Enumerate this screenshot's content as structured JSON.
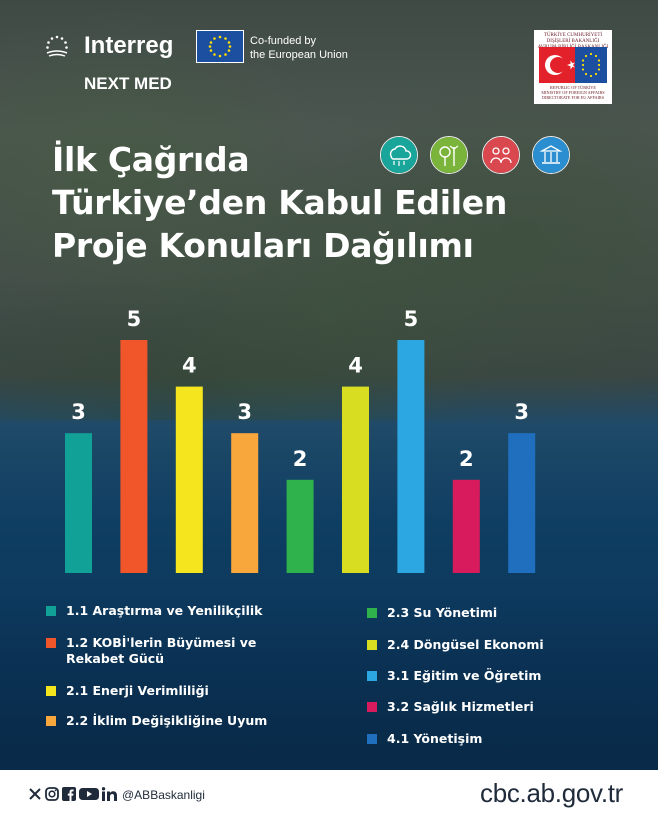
{
  "header": {
    "brand_name": "Interreg",
    "brand_sub": "NEXT MED",
    "eu_line1": "Co-funded by",
    "eu_line2": "the European Union",
    "gov_top_1": "TÜRKİYE CUMHURİYETİ",
    "gov_top_2": "DIŞİŞLERİ BAKANLIĞI",
    "gov_top_3": "AVRUPA BİRLİĞİ BAŞKANLIĞI",
    "gov_bottom_1": "REPUBLIC OF TÜRKİYE",
    "gov_bottom_2": "MINISTRY OF FOREIGN AFFAIRS",
    "gov_bottom_3": "DIRECTORATE FOR EU AFFAIRS"
  },
  "theme_icons": [
    {
      "icon": "climate-cloud-icon",
      "color": "#1aa59a"
    },
    {
      "icon": "green-energy-icon",
      "color": "#7bb43a"
    },
    {
      "icon": "people-health-icon",
      "color": "#d8484e"
    },
    {
      "icon": "governance-building-icon",
      "color": "#2a8ed0"
    }
  ],
  "chart_data": {
    "type": "bar",
    "title": [
      "İlk Çağrıda",
      "Türkiye’den Kabul Edilen",
      "Proje Konuları Dağılımı"
    ],
    "categories": [
      "1.1 Araştırma ve Yenilikçilik",
      "1.2 KOBİ'lerin Büyümesi ve Rekabet Gücü",
      "2.1 Enerji Verimliliği",
      "2.2 İklim Değişikliğine Uyum",
      "2.3 Su Yönetimi",
      "2.4 Döngüsel Ekonomi",
      "3.1 Eğitim ve Öğretim",
      "3.2 Sağlık Hizmetleri",
      "4.1 Yönetişim"
    ],
    "values": [
      3,
      5,
      4,
      3,
      2,
      4,
      5,
      2,
      3
    ],
    "value_labels": [
      "3",
      "5",
      "4",
      "3",
      "2",
      "4",
      "5",
      "2",
      "3"
    ],
    "colors": [
      "#12a197",
      "#f0562a",
      "#f4e51f",
      "#f8a73c",
      "#2fb14c",
      "#d9dd22",
      "#2da7e2",
      "#d81b5d",
      "#1f6fbe"
    ],
    "ylim": [
      0,
      5
    ],
    "xlabel": "",
    "ylabel": "",
    "grid": false,
    "legend_placement": "bottom"
  },
  "legend": {
    "left": [
      {
        "label_1": "1.1 Araştırma ve Yenilikçilik",
        "label_2": "",
        "color": "#12a197"
      },
      {
        "label_1": "1.2 KOBİ'lerin Büyümesi ve",
        "label_2": "Rekabet Gücü",
        "color": "#f0562a"
      },
      {
        "label_1": "2.1 Enerji Verimliliği",
        "label_2": "",
        "color": "#f4e51f"
      },
      {
        "label_1": "2.2 İklim Değişikliğine Uyum",
        "label_2": "",
        "color": "#f8a73c"
      }
    ],
    "right": [
      {
        "label_1": "2.3 Su Yönetimi",
        "color": "#2fb14c"
      },
      {
        "label_1": "2.4 Döngüsel Ekonomi",
        "color": "#d9dd22"
      },
      {
        "label_1": "3.1 Eğitim ve Öğretim",
        "color": "#2da7e2"
      },
      {
        "label_1": "3.2 Sağlık Hizmetleri",
        "color": "#d81b5d"
      },
      {
        "label_1": "4.1 Yönetişim",
        "color": "#1f6fbe"
      }
    ]
  },
  "footer": {
    "social_icons": [
      "x-icon",
      "instagram-icon",
      "facebook-icon",
      "youtube-icon",
      "linkedin-icon"
    ],
    "handle": "@ABBaskanligi",
    "website": "cbc.ab.gov.tr"
  }
}
